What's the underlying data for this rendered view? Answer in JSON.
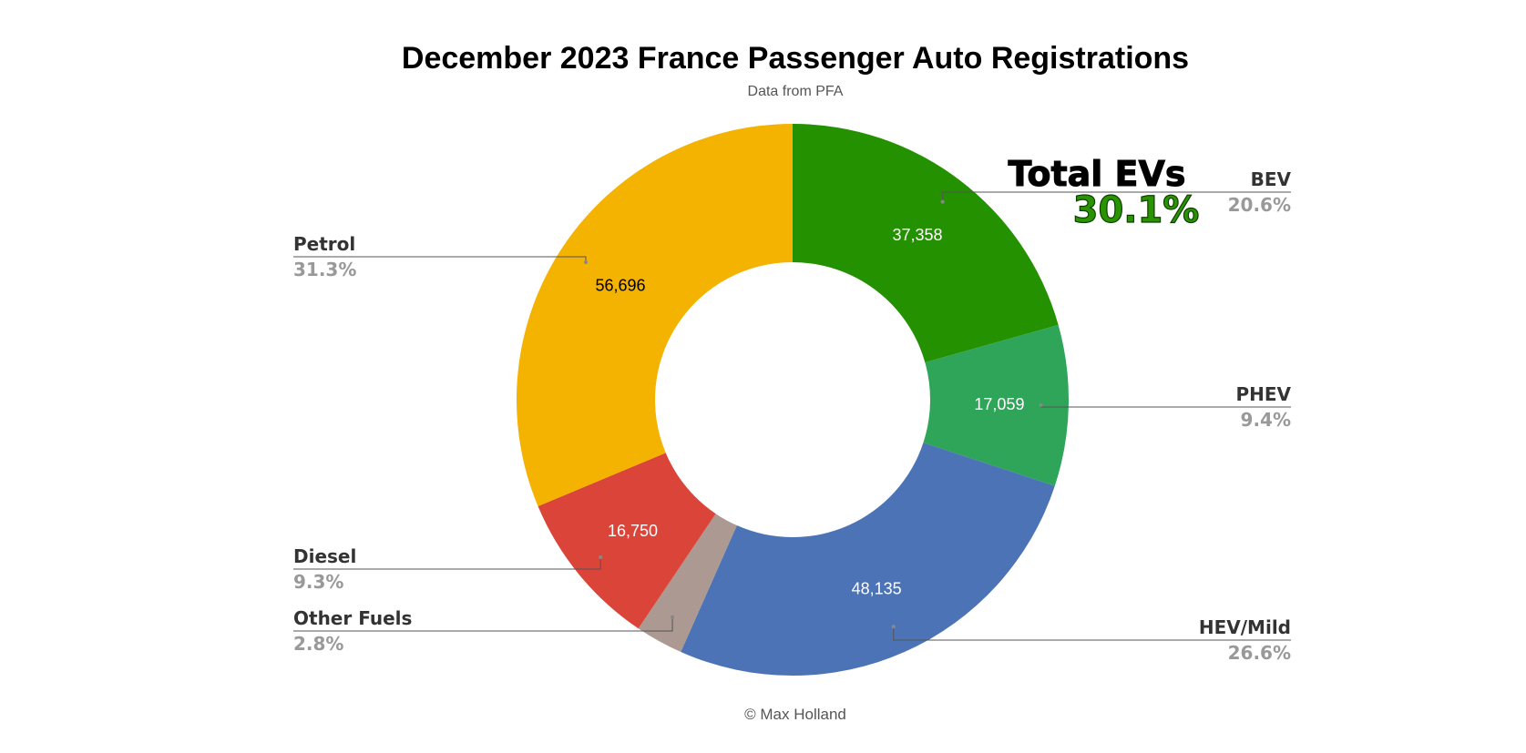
{
  "chart_data": {
    "type": "pie",
    "donut": true,
    "title": "December 2023 France Passenger Auto Registrations",
    "subtitle": "Data from PFA",
    "footer": "© Max Holland",
    "callout": {
      "title": "Total EVs",
      "value": "30.1%",
      "color": "#2a9400"
    },
    "slices": [
      {
        "label": "BEV",
        "value": 37358,
        "value_label": "37,358",
        "percent": "20.6%",
        "color": "#249100",
        "text_color": "#ffffff"
      },
      {
        "label": "PHEV",
        "value": 17059,
        "value_label": "17,059",
        "percent": "9.4%",
        "color": "#2ea559",
        "text_color": "#ffffff"
      },
      {
        "label": "HEV/Mild",
        "value": 48135,
        "value_label": "48,135",
        "percent": "26.6%",
        "color": "#4b73b6",
        "text_color": "#ffffff"
      },
      {
        "label": "Other Fuels",
        "value": 5070,
        "value_label": "",
        "percent": "2.8%",
        "color": "#ab9992",
        "text_color": "#ffffff"
      },
      {
        "label": "Diesel",
        "value": 16750,
        "value_label": "16,750",
        "percent": "9.3%",
        "color": "#db4439",
        "text_color": "#ffffff"
      },
      {
        "label": "Petrol",
        "value": 56696,
        "value_label": "56,696",
        "percent": "31.3%",
        "color": "#f4b300",
        "text_color": "#000000"
      }
    ],
    "legend_placement": "outside-leader-lines"
  }
}
